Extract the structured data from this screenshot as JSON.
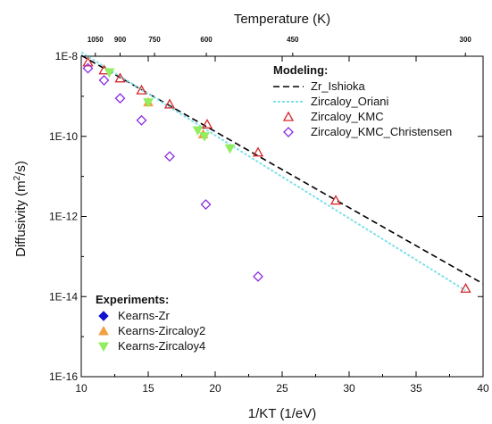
{
  "chart_data": {
    "type": "scatter",
    "xlabel": "1/KT (1/eV)",
    "ylabel": "Diffusivity (m",
    "ylabel_sup": "2",
    "ylabel_end": "/s)",
    "top_axis_title": "Temperature (K)",
    "xlim": [
      10,
      40
    ],
    "ylim_log10": [
      -16,
      -8
    ],
    "x_ticks": [
      10,
      15,
      20,
      25,
      30,
      35,
      40
    ],
    "x_tick_labels": [
      "10",
      "15",
      "20",
      "25",
      "30",
      "35",
      "40"
    ],
    "y_ticks_log10": [
      -16,
      -14,
      -12,
      -10,
      -8
    ],
    "y_tick_labels": [
      "1E-16",
      "1E-14",
      "1E-12",
      "1E-10",
      "1E-8"
    ],
    "top_ticks": [
      {
        "label": "1050",
        "x": 11.05
      },
      {
        "label": "900",
        "x": 12.9
      },
      {
        "label": "750",
        "x": 15.47
      },
      {
        "label": "600",
        "x": 19.34
      },
      {
        "label": "450",
        "x": 25.79
      },
      {
        "label": "300",
        "x": 38.68
      }
    ],
    "legend_groups": {
      "modeling": "Modeling:",
      "experiments": "Experiments:"
    },
    "series": [
      {
        "name": "Zr_Ishioka",
        "kind": "line",
        "style": "dashed",
        "color": "#000000",
        "x": [
          10,
          40
        ],
        "log10_y": [
          -7.98,
          -13.68
        ]
      },
      {
        "name": "Zircaloy_Oriani",
        "kind": "line",
        "style": "dotted",
        "color": "#7fe0e8",
        "x": [
          10,
          38.7
        ],
        "log10_y": [
          -7.9,
          -13.85
        ]
      },
      {
        "name": "Zircaloy_KMC",
        "kind": "marker",
        "marker": "triangle-open",
        "color": "#d6262b",
        "x": [
          10.5,
          11.7,
          12.9,
          14.5,
          16.6,
          19.4,
          23.2,
          29.0,
          38.7
        ],
        "log10_y": [
          -8.15,
          -8.35,
          -8.55,
          -8.85,
          -9.2,
          -9.7,
          -10.4,
          -11.6,
          -13.8
        ]
      },
      {
        "name": "Zircaloy_KMC_Christensen",
        "kind": "marker",
        "marker": "diamond-open",
        "color": "#8a2be2",
        "x": [
          10.5,
          11.7,
          12.9,
          14.5,
          16.6,
          19.3,
          23.2
        ],
        "log10_y": [
          -8.3,
          -8.6,
          -9.05,
          -9.6,
          -10.5,
          -11.7,
          -13.5
        ]
      },
      {
        "name": "Kearns-Zr",
        "kind": "marker",
        "marker": "diamond-filled",
        "color": "#1010d0",
        "x": [],
        "log10_y": []
      },
      {
        "name": "Kearns-Zircaloy2",
        "kind": "marker",
        "marker": "triangle-filled",
        "color": "#f0a040",
        "x": [
          15.0,
          19.1
        ],
        "log10_y": [
          -9.15,
          -9.95
        ]
      },
      {
        "name": "Kearns-Zircaloy4",
        "kind": "marker",
        "marker": "triangle-down-filled",
        "color": "#90ee60",
        "x": [
          12.1,
          15.0,
          18.7,
          19.2,
          21.1
        ],
        "log10_y": [
          -8.4,
          -9.15,
          -9.85,
          -10.0,
          -10.3
        ]
      }
    ],
    "legend_placement": "top-right and bottom-left",
    "grid": false
  }
}
